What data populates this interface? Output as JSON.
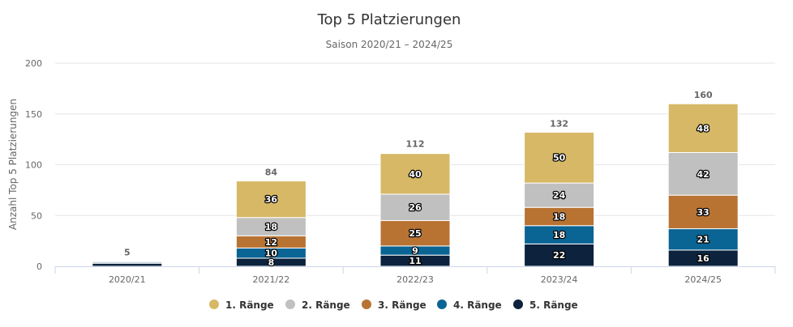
{
  "chart_data": {
    "type": "bar",
    "stacked": true,
    "title": "Top 5 Platzierungen",
    "subtitle": "Saison 2020/21 – 2024/25",
    "ylabel": "Anzahl Top 5 Platzierungen",
    "xlabel": "",
    "ylim": [
      0,
      200
    ],
    "yticks": [
      0,
      50,
      100,
      150,
      200
    ],
    "grid": true,
    "legend_position": "bottom",
    "categories": [
      "2020/21",
      "2021/22",
      "2022/23",
      "2023/24",
      "2024/25"
    ],
    "series": [
      {
        "name": "1. Ränge",
        "color": "#D7B866",
        "values": [
          0,
          36,
          40,
          50,
          48
        ]
      },
      {
        "name": "2. Ränge",
        "color": "#C0C0C0",
        "values": [
          1,
          18,
          26,
          24,
          42
        ]
      },
      {
        "name": "3. Ränge",
        "color": "#B87333",
        "values": [
          0,
          12,
          25,
          18,
          33
        ]
      },
      {
        "name": "4. Ränge",
        "color": "#0A6494",
        "values": [
          1,
          10,
          9,
          18,
          21
        ]
      },
      {
        "name": "5. Ränge",
        "color": "#0C223D",
        "values": [
          3,
          8,
          11,
          22,
          16
        ]
      }
    ],
    "totals": [
      5,
      84,
      112,
      132,
      160
    ],
    "data_labels_hidden_below": 5
  }
}
